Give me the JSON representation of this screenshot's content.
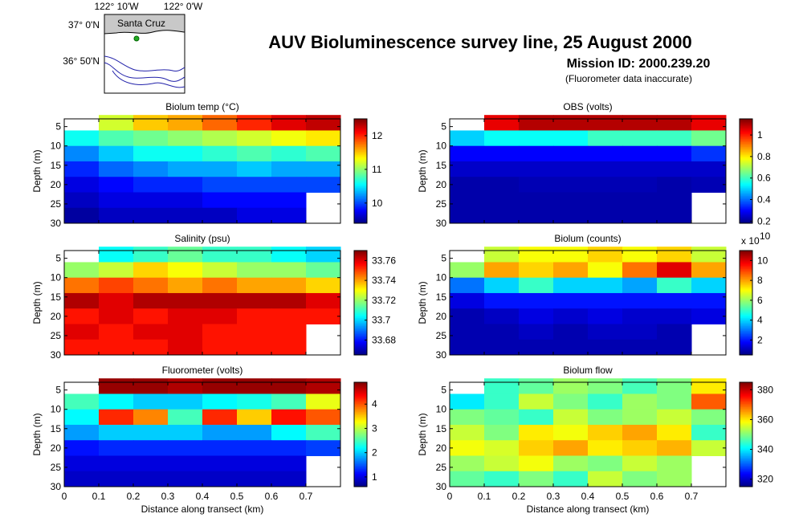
{
  "title": "AUV Bioluminescence survey line, 25 August 2000",
  "subtitle": "Mission ID: 2000.239.20",
  "note": "(Fluorometer data inaccurate)",
  "map": {
    "xtick_labels": [
      "122° 10'W",
      "122° 0'W"
    ],
    "ytick_labels": [
      "37° 0'N",
      "36° 50'N"
    ],
    "place": "Santa Cruz"
  },
  "chart_data": [
    {
      "type": "heatmap",
      "title": "Biolum temp (°C)",
      "ylabel": "Depth (m)",
      "x": [
        0.05,
        0.15,
        0.25,
        0.35,
        0.45,
        0.55,
        0.65,
        0.75
      ],
      "y": [
        4,
        8,
        12,
        16,
        20,
        24,
        28
      ],
      "values": [
        [
          null,
          11.2,
          11.5,
          11.6,
          11.8,
          12.0,
          12.2,
          12.3
        ],
        [
          10.6,
          10.8,
          10.9,
          11.0,
          11.1,
          11.2,
          11.3,
          11.4
        ],
        [
          10.2,
          10.4,
          10.6,
          10.6,
          10.7,
          10.8,
          10.7,
          10.8
        ],
        [
          9.9,
          10.1,
          10.2,
          10.3,
          10.3,
          10.4,
          10.3,
          10.3
        ],
        [
          9.7,
          9.8,
          9.9,
          9.9,
          10.0,
          10.0,
          10.0,
          10.0
        ],
        [
          9.6,
          9.7,
          9.7,
          9.7,
          9.8,
          9.8,
          9.8,
          null
        ],
        [
          9.5,
          9.6,
          9.6,
          9.6,
          9.6,
          9.7,
          9.7,
          null
        ]
      ],
      "xlim": [
        0,
        0.8
      ],
      "xticks": [
        0,
        0.1,
        0.2,
        0.3,
        0.4,
        0.5,
        0.6,
        0.7
      ],
      "ylim": [
        30,
        3
      ],
      "yticks": [
        5,
        10,
        15,
        20,
        25,
        30
      ],
      "clim": [
        9.4,
        12.5
      ],
      "cticks": [
        10,
        11,
        12
      ],
      "colormap": "jet"
    },
    {
      "type": "heatmap",
      "title": "OBS (volts)",
      "ylabel": "Depth (m)",
      "x": [
        0.05,
        0.15,
        0.25,
        0.35,
        0.45,
        0.55,
        0.65,
        0.75
      ],
      "y": [
        4,
        8,
        12,
        16,
        20,
        24,
        28
      ],
      "values": [
        [
          null,
          1.05,
          1.1,
          1.1,
          1.1,
          1.1,
          1.1,
          1.05
        ],
        [
          0.5,
          0.55,
          0.55,
          0.55,
          0.6,
          0.6,
          0.6,
          0.65
        ],
        [
          0.3,
          0.3,
          0.3,
          0.3,
          0.3,
          0.3,
          0.3,
          0.35
        ],
        [
          0.25,
          0.25,
          0.25,
          0.25,
          0.25,
          0.25,
          0.25,
          0.25
        ],
        [
          0.22,
          0.22,
          0.23,
          0.23,
          0.23,
          0.23,
          0.22,
          0.23
        ],
        [
          0.22,
          0.22,
          0.22,
          0.22,
          0.22,
          0.22,
          0.22,
          null
        ],
        [
          0.22,
          0.22,
          0.22,
          0.22,
          0.22,
          0.22,
          0.22,
          null
        ]
      ],
      "xlim": [
        0,
        0.8
      ],
      "xticks": [
        0,
        0.1,
        0.2,
        0.3,
        0.4,
        0.5,
        0.6,
        0.7
      ],
      "ylim": [
        30,
        3
      ],
      "yticks": [
        5,
        10,
        15,
        20,
        25,
        30
      ],
      "clim": [
        0.18,
        1.15
      ],
      "cticks": [
        0.2,
        0.4,
        0.6,
        0.8,
        1
      ],
      "colormap": "jet"
    },
    {
      "type": "heatmap",
      "title": "Salinity (psu)",
      "ylabel": "Depth (m)",
      "x": [
        0.05,
        0.15,
        0.25,
        0.35,
        0.45,
        0.55,
        0.65,
        0.75
      ],
      "y": [
        4,
        8,
        12,
        16,
        20,
        24,
        28
      ],
      "values": [
        [
          null,
          33.705,
          33.71,
          33.715,
          33.71,
          33.71,
          33.705,
          33.7
        ],
        [
          33.72,
          33.725,
          33.735,
          33.73,
          33.725,
          33.72,
          33.72,
          33.715
        ],
        [
          33.745,
          33.75,
          33.745,
          33.74,
          33.745,
          33.74,
          33.74,
          33.735
        ],
        [
          33.765,
          33.76,
          33.765,
          33.765,
          33.765,
          33.765,
          33.765,
          33.76
        ],
        [
          33.755,
          33.76,
          33.755,
          33.76,
          33.76,
          33.755,
          33.755,
          33.755
        ],
        [
          33.76,
          33.755,
          33.76,
          33.76,
          33.755,
          33.755,
          33.755,
          null
        ],
        [
          33.755,
          33.755,
          33.755,
          33.76,
          33.755,
          33.755,
          33.755,
          null
        ]
      ],
      "xlim": [
        0,
        0.8
      ],
      "xticks": [
        0,
        0.1,
        0.2,
        0.3,
        0.4,
        0.5,
        0.6,
        0.7
      ],
      "ylim": [
        30,
        3
      ],
      "yticks": [
        5,
        10,
        15,
        20,
        25,
        30
      ],
      "clim": [
        33.665,
        33.77
      ],
      "cticks": [
        33.68,
        33.7,
        33.72,
        33.74,
        33.76
      ],
      "colormap": "jet"
    },
    {
      "type": "heatmap",
      "title": "Biolum (counts)",
      "ylabel": "Depth (m)",
      "x": [
        0.05,
        0.15,
        0.25,
        0.35,
        0.45,
        0.55,
        0.65,
        0.75
      ],
      "y": [
        4,
        8,
        12,
        16,
        20,
        24,
        28
      ],
      "values": [
        [
          null,
          6.5,
          7,
          7,
          7.5,
          7,
          7.5,
          6.5
        ],
        [
          6,
          8,
          7.5,
          8,
          7,
          8.5,
          10,
          8
        ],
        [
          3,
          4,
          5,
          4,
          4,
          3.5,
          5,
          4
        ],
        [
          1.5,
          2,
          2,
          2,
          2,
          2,
          2,
          2
        ],
        [
          1,
          1.2,
          1.5,
          1.3,
          1.5,
          1.3,
          1.3,
          1.5
        ],
        [
          1,
          1,
          1.2,
          1,
          1.2,
          1.2,
          1,
          null
        ],
        [
          1,
          1,
          1,
          1,
          1,
          1,
          1,
          null
        ]
      ],
      "xlim": [
        0,
        0.8
      ],
      "xticks": [
        0,
        0.1,
        0.2,
        0.3,
        0.4,
        0.5,
        0.6,
        0.7
      ],
      "ylim": [
        30,
        3
      ],
      "yticks": [
        5,
        10,
        15,
        20,
        25,
        30
      ],
      "clim": [
        0.5,
        11
      ],
      "cticks": [
        2,
        4,
        6,
        8,
        10
      ],
      "colorbar_scale": {
        "label": "x 10",
        "exponent": "10"
      },
      "colormap": "jet"
    },
    {
      "type": "heatmap",
      "title": "Fluorometer (volts)",
      "ylabel": "Depth (m)",
      "xlabel": "Distance along transect (km)",
      "x": [
        0.05,
        0.15,
        0.25,
        0.35,
        0.45,
        0.55,
        0.65,
        0.75
      ],
      "y": [
        4,
        8,
        12,
        16,
        20,
        24,
        28
      ],
      "values": [
        [
          null,
          4.8,
          4.8,
          4.7,
          4.8,
          4.8,
          4.8,
          4.7
        ],
        [
          2.5,
          2.2,
          2,
          2,
          2.2,
          2.3,
          2.5,
          3.2
        ],
        [
          2.2,
          4.2,
          3.8,
          2.5,
          4.2,
          3.5,
          4.3,
          4.0
        ],
        [
          1.8,
          2,
          2,
          2,
          1.8,
          1.8,
          2.2,
          2.5
        ],
        [
          1.2,
          1.3,
          1.3,
          1.3,
          1.3,
          1.3,
          1.3,
          1.4
        ],
        [
          1,
          1,
          1,
          1,
          1,
          1,
          1,
          null
        ],
        [
          0.9,
          0.9,
          0.9,
          0.9,
          0.9,
          0.9,
          0.9,
          null
        ]
      ],
      "xlim": [
        0,
        0.8
      ],
      "xticks": [
        0,
        0.1,
        0.2,
        0.3,
        0.4,
        0.5,
        0.6,
        0.7
      ],
      "ylim": [
        30,
        3
      ],
      "yticks": [
        5,
        10,
        15,
        20,
        25,
        30
      ],
      "clim": [
        0.6,
        4.9
      ],
      "cticks": [
        1,
        2,
        3,
        4
      ],
      "colormap": "jet"
    },
    {
      "type": "heatmap",
      "title": "Biolum flow",
      "ylabel": "Depth (m)",
      "xlabel": "Distance along transect (km)",
      "x": [
        0.05,
        0.15,
        0.25,
        0.35,
        0.45,
        0.55,
        0.65,
        0.75
      ],
      "y": [
        4,
        8,
        12,
        16,
        20,
        24,
        28
      ],
      "values": [
        [
          null,
          345,
          348,
          352,
          350,
          346,
          350,
          360
        ],
        [
          340,
          345,
          355,
          350,
          345,
          352,
          350,
          370
        ],
        [
          350,
          348,
          345,
          355,
          350,
          352,
          355,
          350
        ],
        [
          355,
          350,
          360,
          358,
          362,
          365,
          360,
          345
        ],
        [
          358,
          356,
          362,
          365,
          360,
          362,
          364,
          355
        ],
        [
          352,
          355,
          358,
          352,
          350,
          355,
          352,
          null
        ],
        [
          348,
          345,
          350,
          345,
          355,
          350,
          352,
          null
        ]
      ],
      "xlim": [
        0,
        0.8
      ],
      "xticks": [
        0,
        0.1,
        0.2,
        0.3,
        0.4,
        0.5,
        0.6,
        0.7
      ],
      "ylim": [
        30,
        3
      ],
      "yticks": [
        5,
        10,
        15,
        20,
        25,
        30
      ],
      "clim": [
        315,
        385
      ],
      "cticks": [
        320,
        340,
        360,
        380
      ],
      "colormap": "jet"
    }
  ]
}
